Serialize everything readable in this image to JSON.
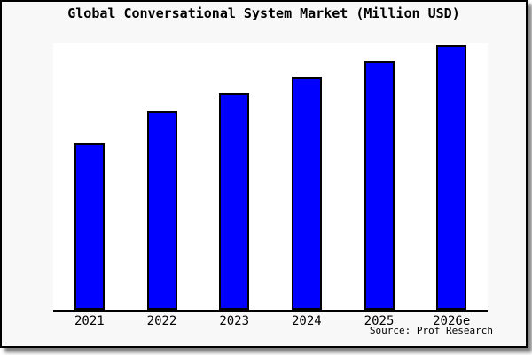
{
  "page": {
    "background_color": "#ffffff",
    "frame_background_color": "#f8f8f8",
    "frame_border_color": "#000000"
  },
  "chart_data": {
    "type": "bar",
    "title": "Global Conversational System Market (Million USD)",
    "categories": [
      "2021",
      "2022",
      "2023",
      "2024",
      "2025",
      "2026e"
    ],
    "values": [
      62.7,
      74.7,
      81.3,
      87.3,
      93.3,
      99.3
    ],
    "value_note": "relative bar heights as % of plot height; chart displays no y-axis tick values",
    "xlabel": "",
    "ylabel": "",
    "ylim": [
      0,
      100
    ],
    "grid": false,
    "legend": false,
    "x_axis_line": true,
    "y_axis_line": false,
    "bar_color": "#0000ff",
    "bar_border_color": "#000000",
    "axis_color": "#000000",
    "source_note": "Source: Prof Research"
  }
}
